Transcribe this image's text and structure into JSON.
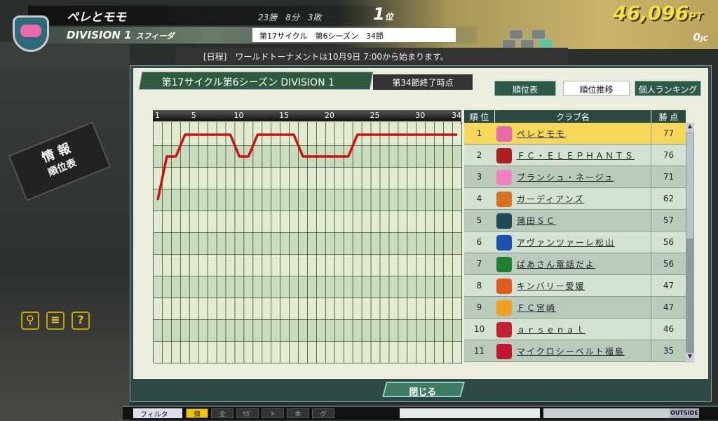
{
  "header": {
    "team_name": "ペレとモモ",
    "record": "23勝　8分　3敗",
    "rank": "1",
    "rank_suffix": "位",
    "points": "46,096",
    "points_unit": "PT",
    "division": "DIVISION 1",
    "club_home": "スフィーダ",
    "season": "第17サイクル　第6シーズン　34節",
    "jc": "0",
    "jc_unit": "JC"
  },
  "news": "[日程]　ワールドトーナメントは10月9日 7:00から始まります。",
  "panel": {
    "title": "第17サイクル第6シーズン DIVISION 1",
    "subtitle": "第34節終了時点",
    "tabs": [
      {
        "label": "順位表",
        "active": false
      },
      {
        "label": "順位推移",
        "active": true
      },
      {
        "label": "個人ランキング",
        "active": false
      }
    ],
    "close_label": "閉じる"
  },
  "side": {
    "sign_line1": "情 報",
    "sign_line2": "順位表",
    "help": "?"
  },
  "table": {
    "headers": [
      "順 位",
      "クラブ名",
      "勝 点"
    ],
    "rows": [
      {
        "rank": "1",
        "name": "ペレとモモ",
        "pts": "77",
        "color": "#e86aa8"
      },
      {
        "rank": "2",
        "name": "ＦＣ・ＥＬＥＰＨＡＮＴＳ",
        "pts": "76",
        "color": "#b02020"
      },
      {
        "rank": "3",
        "name": "ブランシュ・ネージュ",
        "pts": "71",
        "color": "#f080c0"
      },
      {
        "rank": "4",
        "name": "ガーディアンズ",
        "pts": "62",
        "color": "#d87020"
      },
      {
        "rank": "5",
        "name": "蒲田ＳＣ",
        "pts": "57",
        "color": "#1f4a5a"
      },
      {
        "rank": "6",
        "name": "アヴァンツァーレ松山",
        "pts": "56",
        "color": "#2050b0"
      },
      {
        "rank": "7",
        "name": "ばあさん電話だよ",
        "pts": "56",
        "color": "#208030"
      },
      {
        "rank": "8",
        "name": "キンバリー愛媛",
        "pts": "47",
        "color": "#e05a20"
      },
      {
        "rank": "9",
        "name": "ＦＣ宮崎",
        "pts": "47",
        "color": "#f0a020"
      },
      {
        "rank": "10",
        "name": "ａｒｓｅｎａｌ",
        "pts": "46",
        "color": "#c02030"
      },
      {
        "rank": "11",
        "name": "マイクロシーベルト福島",
        "pts": "35",
        "color": "#c01830"
      }
    ]
  },
  "chart_data": {
    "type": "line",
    "x_ticks": [
      "1",
      "5",
      "10",
      "15",
      "20",
      "25",
      "30",
      "34"
    ],
    "xlim": [
      1,
      34
    ],
    "ylim": [
      1,
      11
    ],
    "y_inverted": true,
    "grid": true,
    "series": [
      {
        "name": "ペレとモモ",
        "color": "#d01010",
        "values": [
          4,
          2,
          2,
          1,
          1,
          1,
          1,
          1,
          1,
          2,
          2,
          1,
          1,
          1,
          1,
          1,
          2,
          2,
          2,
          2,
          2,
          2,
          1,
          1,
          1,
          1,
          1,
          1,
          1,
          1,
          1,
          1,
          1,
          1
        ]
      }
    ]
  },
  "toolbar": {
    "filter": "フィルタ",
    "buttons": [
      {
        "label": "個",
        "active": true
      },
      {
        "label": "全",
        "active": false
      },
      {
        "label": "ｻｶﾞ",
        "active": false
      },
      {
        "label": "ト",
        "active": false
      },
      {
        "label": "本",
        "active": false
      },
      {
        "label": "グ",
        "active": false
      }
    ],
    "outside": "OUTSIDE"
  },
  "colors": {
    "highlight": "#f8d85a",
    "points": "#f4e23a",
    "row_a": "#d3e2d3",
    "row_b": "#b8cbbd"
  }
}
